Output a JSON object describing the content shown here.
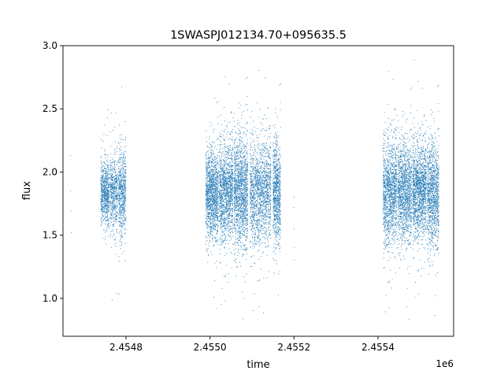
{
  "chart_data": {
    "type": "scatter",
    "title": "1SWASPJ012134.70+095635.5",
    "xlabel": "time",
    "ylabel": "flux",
    "x_offset_label": "1e6",
    "xlim": [
      2454650,
      2455580
    ],
    "ylim": [
      0.7,
      3.0
    ],
    "x_ticks": [
      2454800,
      2455000,
      2455200,
      2455400
    ],
    "x_tick_labels": [
      "2.4548",
      "2.4550",
      "2.4552",
      "2.4554"
    ],
    "y_ticks": [
      1.0,
      1.5,
      2.0,
      2.5,
      3.0
    ],
    "y_tick_labels": [
      "1.0",
      "1.5",
      "2.0",
      "2.5",
      "3.0"
    ],
    "grid": false,
    "marker_color": "#1f77b4",
    "series": [
      {
        "name": "",
        "clusters": [
          {
            "x_range": [
              2454740,
              2454760
            ],
            "median": 1.83,
            "spread": 0.12,
            "count": 700
          },
          {
            "x_range": [
              2454762,
              2454780
            ],
            "median": 1.83,
            "spread": 0.15,
            "count": 500
          },
          {
            "x_range": [
              2454782,
              2454800
            ],
            "median": 1.83,
            "spread": 0.17,
            "count": 600
          },
          {
            "x_range": [
              2454990,
              2455020
            ],
            "median": 1.82,
            "spread": 0.17,
            "count": 1300
          },
          {
            "x_range": [
              2455022,
              2455055
            ],
            "median": 1.84,
            "spread": 0.19,
            "count": 1300
          },
          {
            "x_range": [
              2455057,
              2455090
            ],
            "median": 1.84,
            "spread": 0.21,
            "count": 1400
          },
          {
            "x_range": [
              2455095,
              2455145
            ],
            "median": 1.84,
            "spread": 0.2,
            "count": 1500
          },
          {
            "x_range": [
              2455150,
              2455168
            ],
            "median": 1.83,
            "spread": 0.2,
            "count": 800
          },
          {
            "x_range": [
              2455412,
              2455445
            ],
            "median": 1.83,
            "spread": 0.2,
            "count": 1300
          },
          {
            "x_range": [
              2455447,
              2455480
            ],
            "median": 1.84,
            "spread": 0.19,
            "count": 1300
          },
          {
            "x_range": [
              2455482,
              2455515
            ],
            "median": 1.85,
            "spread": 0.18,
            "count": 1400
          },
          {
            "x_range": [
              2455517,
              2455545
            ],
            "median": 1.82,
            "spread": 0.2,
            "count": 1100
          }
        ],
        "isolated_points": [
          {
            "x": 2454668,
            "y": 2.13
          },
          {
            "x": 2454668,
            "y": 1.85
          },
          {
            "x": 2454669,
            "y": 1.69
          },
          {
            "x": 2454670,
            "y": 1.52
          },
          {
            "x": 2455200,
            "y": 1.8
          },
          {
            "x": 2455200,
            "y": 1.55
          },
          {
            "x": 2455201,
            "y": 1.4
          },
          {
            "x": 2455201,
            "y": 1.3
          },
          {
            "x": 2455199,
            "y": 1.72
          }
        ]
      }
    ]
  }
}
